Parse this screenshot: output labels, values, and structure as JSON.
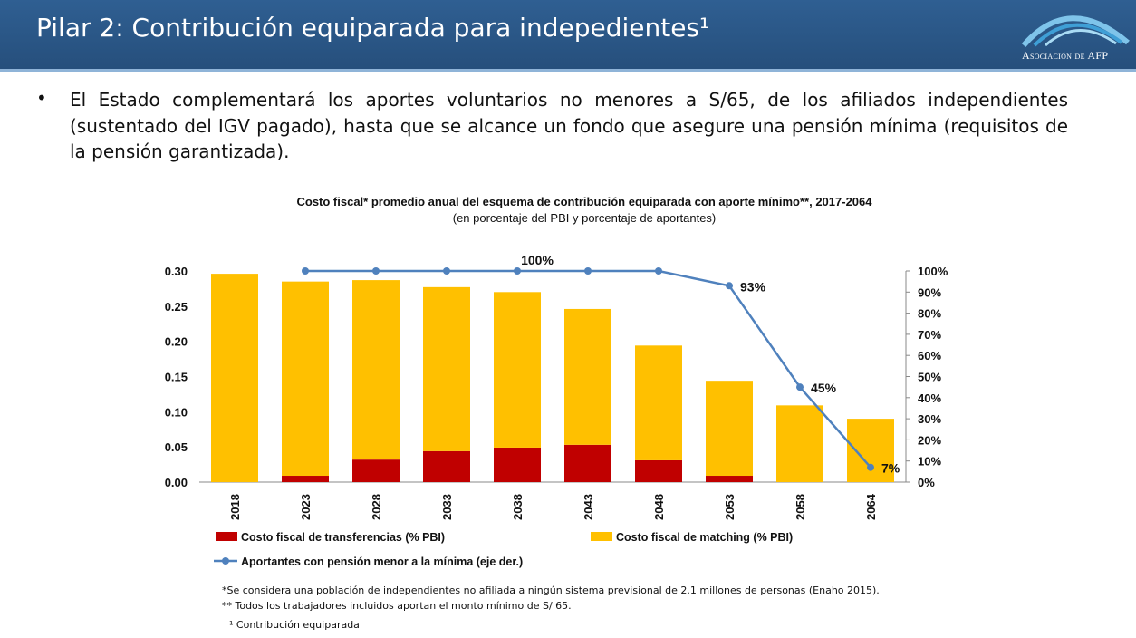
{
  "header": {
    "title": "Pilar 2: Contribución equiparada para indepedientes¹",
    "logo_text": "Asociación de AFP"
  },
  "bullet": {
    "symbol": "•",
    "text": "El Estado complementará los aportes voluntarios no menores a S/65, de los afiliados independientes (sustentado del IGV pagado), hasta que se alcance un fondo que asegure una pensión mínima (requisitos de la pensión garantizada)."
  },
  "chart_data": {
    "type": "bar",
    "stacked": true,
    "title": "Costo fiscal* promedio anual del esquema de contribución equiparada con aporte mínimo**, 2017-2064",
    "subtitle": "(en porcentaje del PBI y porcentaje de aportantes)",
    "categories": [
      "2018",
      "2023",
      "2028",
      "2033",
      "2038",
      "2043",
      "2048",
      "2053",
      "2058",
      "2064"
    ],
    "series": [
      {
        "name": "Costo fiscal de transferencias (% PBI)",
        "type": "bar",
        "axis": "left",
        "color": "#C00000",
        "values": [
          0,
          0.009,
          0.032,
          0.044,
          0.049,
          0.053,
          0.031,
          0.009,
          0,
          0
        ]
      },
      {
        "name": "Costo fiscal de matching (% PBI)",
        "type": "bar",
        "axis": "left",
        "color": "#FFC000",
        "values": [
          0.296,
          0.276,
          0.255,
          0.233,
          0.221,
          0.193,
          0.163,
          0.135,
          0.109,
          0.09
        ]
      },
      {
        "name": "Aportantes con pensión menor a la mínima (eje der.)",
        "type": "line",
        "axis": "right",
        "color": "#4F81BD",
        "values": [
          null,
          100,
          100,
          100,
          100,
          100,
          100,
          93,
          45,
          7
        ]
      }
    ],
    "line_labels": [
      {
        "category": "2038",
        "text": "100%"
      },
      {
        "category": "2053",
        "text": "93%"
      },
      {
        "category": "2058",
        "text": "45%"
      },
      {
        "category": "2064",
        "text": "7%"
      }
    ],
    "ylim": [
      0,
      0.3
    ],
    "yticks": [
      "0.00",
      "0.05",
      "0.10",
      "0.15",
      "0.20",
      "0.25",
      "0.30"
    ],
    "y2lim": [
      0,
      100
    ],
    "y2ticks": [
      "0%",
      "10%",
      "20%",
      "30%",
      "40%",
      "50%",
      "60%",
      "70%",
      "80%",
      "90%",
      "100%"
    ],
    "grid": false,
    "legend": "bottom"
  },
  "notes": [
    "*Se considera una población de independientes no afiliada a ningún sistema previsional de 2.1 millones de personas (Enaho 2015).",
    "** Todos los trabajadores incluidos aportan el monto mínimo de S/ 65.",
    "¹ Contribución equiparada"
  ]
}
